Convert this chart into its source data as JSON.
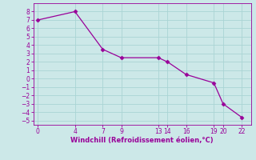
{
  "x": [
    0,
    4,
    7,
    9,
    13,
    14,
    16,
    19,
    20,
    22
  ],
  "y": [
    7,
    8,
    3.5,
    2.5,
    2.5,
    2.0,
    0.5,
    -0.5,
    -3.0,
    -4.6
  ],
  "line_color": "#990099",
  "marker": "D",
  "marker_size": 2.5,
  "bg_color": "#cce8e8",
  "grid_color": "#aad4d4",
  "xlabel": "Windchill (Refroidissement éolien,°C)",
  "xlabel_color": "#990099",
  "tick_color": "#990099",
  "spine_color": "#990099",
  "xlim": [
    -0.5,
    23
  ],
  "ylim": [
    -5.5,
    9.0
  ],
  "xticks": [
    0,
    4,
    7,
    9,
    13,
    14,
    16,
    19,
    20,
    22
  ],
  "yticks": [
    -5,
    -4,
    -3,
    -2,
    -1,
    0,
    1,
    2,
    3,
    4,
    5,
    6,
    7,
    8
  ],
  "tick_fontsize": 5.5,
  "xlabel_fontsize": 6.0,
  "figsize": [
    3.2,
    2.0
  ],
  "dpi": 100
}
